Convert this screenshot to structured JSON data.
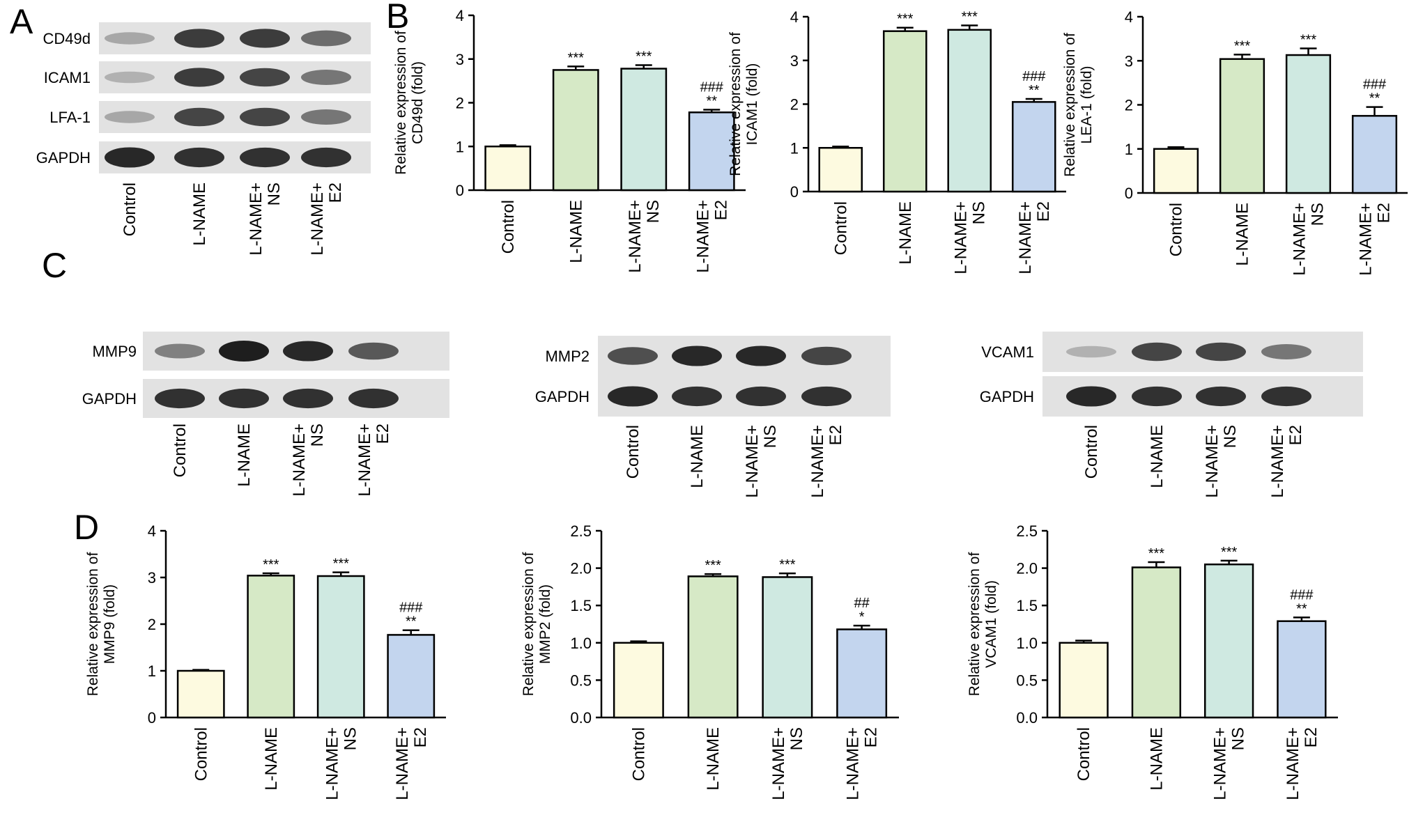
{
  "panel_labels": [
    "A",
    "B",
    "C",
    "D"
  ],
  "lanes": [
    "Control",
    "L-NAME",
    "L-NAME+\nNS",
    "L-NAME+\nE2"
  ],
  "colors": {
    "bar_fills": [
      "#fdfae0",
      "#d6e9c6",
      "#cfe9e1",
      "#c3d5ee"
    ],
    "stroke": "#000000",
    "blot_bg": "#e2e2e2",
    "band": "#1e1e1e"
  },
  "blots": {
    "A": [
      {
        "label": "CD49d",
        "intensity": [
          0.3,
          0.85,
          0.85,
          0.6
        ]
      },
      {
        "label": "ICAM1",
        "intensity": [
          0.25,
          0.85,
          0.8,
          0.55
        ]
      },
      {
        "label": "LFA-1",
        "intensity": [
          0.3,
          0.8,
          0.8,
          0.55
        ]
      },
      {
        "label": "GAPDH",
        "intensity": [
          0.95,
          0.9,
          0.9,
          0.9
        ]
      }
    ],
    "C1": [
      {
        "label": "MMP9",
        "intensity": [
          0.5,
          1.0,
          0.95,
          0.7
        ]
      },
      {
        "label": "GAPDH",
        "intensity": [
          0.9,
          0.9,
          0.9,
          0.9
        ]
      }
    ],
    "C2": [
      {
        "label": "MMP2",
        "intensity": [
          0.75,
          0.95,
          0.95,
          0.8
        ]
      },
      {
        "label": "GAPDH",
        "intensity": [
          0.95,
          0.9,
          0.9,
          0.9
        ]
      }
    ],
    "C3": [
      {
        "label": "VCAM1",
        "intensity": [
          0.25,
          0.8,
          0.8,
          0.55
        ]
      },
      {
        "label": "GAPDH",
        "intensity": [
          0.95,
          0.9,
          0.9,
          0.9
        ]
      }
    ]
  },
  "chart_data": [
    {
      "type": "bar",
      "panel": "B",
      "ylabel": "Relative expression of\nCD49d (fold)",
      "categories": [
        "Control",
        "L-NAME",
        "L-NAME+\nNS",
        "L-NAME+\nE2"
      ],
      "values": [
        1.0,
        2.75,
        2.78,
        1.78
      ],
      "errors": [
        0.03,
        0.08,
        0.08,
        0.06
      ],
      "ylim": [
        0,
        4
      ],
      "ticks": [
        "0",
        "1",
        "2",
        "3",
        "4"
      ],
      "annotations": [
        [],
        [
          "***"
        ],
        [
          "***"
        ],
        [
          "###",
          "**"
        ]
      ]
    },
    {
      "type": "bar",
      "panel": "B",
      "ylabel": "Relative expression of\nICAM1 (fold)",
      "categories": [
        "Control",
        "L-NAME",
        "L-NAME+\nNS",
        "L-NAME+\nE2"
      ],
      "values": [
        1.0,
        3.67,
        3.7,
        2.05
      ],
      "errors": [
        0.03,
        0.08,
        0.1,
        0.07
      ],
      "ylim": [
        0,
        4
      ],
      "ticks": [
        "0",
        "1",
        "2",
        "3",
        "4"
      ],
      "annotations": [
        [],
        [
          "***"
        ],
        [
          "***"
        ],
        [
          "###",
          "**"
        ]
      ]
    },
    {
      "type": "bar",
      "panel": "B",
      "ylabel": "Relative expression of\nLEA-1 (fold)",
      "categories": [
        "Control",
        "L-NAME",
        "L-NAME+\nNS",
        "L-NAME+\nE2"
      ],
      "values": [
        1.0,
        3.04,
        3.13,
        1.75
      ],
      "errors": [
        0.04,
        0.1,
        0.15,
        0.2
      ],
      "ylim": [
        0,
        4
      ],
      "ticks": [
        "0",
        "1",
        "2",
        "3",
        "4"
      ],
      "annotations": [
        [],
        [
          "***"
        ],
        [
          "***"
        ],
        [
          "###",
          "**"
        ]
      ]
    },
    {
      "type": "bar",
      "panel": "D",
      "ylabel": "Relative expression of\nMMP9 (fold)",
      "categories": [
        "Control",
        "L-NAME",
        "L-NAME+\nNS",
        "L-NAME+\nE2"
      ],
      "values": [
        1.0,
        3.04,
        3.03,
        1.77
      ],
      "errors": [
        0.02,
        0.05,
        0.08,
        0.1
      ],
      "ylim": [
        0,
        4
      ],
      "ticks": [
        "0",
        "1",
        "2",
        "3",
        "4"
      ],
      "annotations": [
        [],
        [
          "***"
        ],
        [
          "***"
        ],
        [
          "###",
          "**"
        ]
      ]
    },
    {
      "type": "bar",
      "panel": "D",
      "ylabel": "Relative expression of\nMMP2 (fold)",
      "categories": [
        "Control",
        "L-NAME",
        "L-NAME+\nNS",
        "L-NAME+\nE2"
      ],
      "values": [
        1.0,
        1.89,
        1.88,
        1.18
      ],
      "errors": [
        0.02,
        0.03,
        0.05,
        0.05
      ],
      "ylim": [
        0,
        2.5
      ],
      "ticks": [
        "0.0",
        "0.5",
        "1.0",
        "1.5",
        "2.0",
        "2.5"
      ],
      "annotations": [
        [],
        [
          "***"
        ],
        [
          "***"
        ],
        [
          "##",
          "*"
        ]
      ]
    },
    {
      "type": "bar",
      "panel": "D",
      "ylabel": "Relative expression of\nVCAM1 (fold)",
      "categories": [
        "Control",
        "L-NAME",
        "L-NAME+\nNS",
        "L-NAME+\nE2"
      ],
      "values": [
        1.0,
        2.01,
        2.05,
        1.29
      ],
      "errors": [
        0.03,
        0.07,
        0.05,
        0.05
      ],
      "ylim": [
        0,
        2.5
      ],
      "ticks": [
        "0.0",
        "0.5",
        "1.0",
        "1.5",
        "2.0",
        "2.5"
      ],
      "annotations": [
        [],
        [
          "***"
        ],
        [
          "***"
        ],
        [
          "###",
          "**"
        ]
      ]
    }
  ]
}
